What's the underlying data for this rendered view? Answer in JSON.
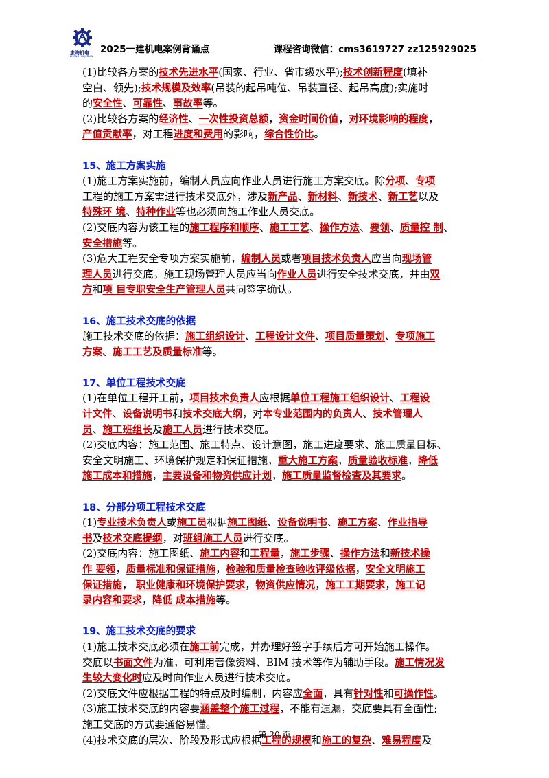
{
  "header": {
    "brand": "忠海机电",
    "brand_sub": "ZHONG HAI JI DIAN",
    "title": "2025一建机电案例背诵点",
    "contact": "课程咨询微信：cms3619727  zz125929025"
  },
  "footer": {
    "page": "第 20 页"
  },
  "lines": [
    [
      [
        "(1)比较各方案的",
        0
      ],
      [
        "技术先进水平",
        1
      ],
      [
        "(国家、行业、省市级水平);",
        0
      ],
      [
        "技术创新程度",
        1
      ],
      [
        "(填补",
        0
      ]
    ],
    [
      [
        "空白、领先);",
        0
      ],
      [
        "技术规模及效率",
        1
      ],
      [
        "(吊装的起吊吨位、吊装直径、起吊高度);实施时",
        0
      ]
    ],
    [
      [
        "的",
        0
      ],
      [
        "安全性",
        1
      ],
      [
        "、",
        0
      ],
      [
        "可靠性",
        1
      ],
      [
        "、",
        0
      ],
      [
        "事故率",
        1
      ],
      [
        "等。",
        0
      ]
    ],
    [
      [
        "(2)比较各方案的",
        0
      ],
      [
        "经济性",
        1
      ],
      [
        "、",
        0
      ],
      [
        "一次性投资总额",
        1
      ],
      [
        "，",
        0
      ],
      [
        "资金时间价值",
        1
      ],
      [
        "，",
        0
      ],
      [
        "对环境影响的程度",
        1
      ],
      [
        "，",
        0
      ]
    ],
    [
      [
        "产值贡献率",
        1
      ],
      [
        "，对工程",
        0
      ],
      [
        "进度和费用",
        1
      ],
      [
        "的影响，",
        0
      ],
      [
        "综合性价比",
        1
      ],
      [
        "。",
        0
      ]
    ],
    [],
    [
      [
        "15、施工方案实施",
        2
      ]
    ],
    [
      [
        "(1)施工方案实施前，编制人员应向作业人员进行施工方案交底。除",
        0
      ],
      [
        "分项",
        1
      ],
      [
        "、",
        0
      ],
      [
        "专项",
        1
      ]
    ],
    [
      [
        "工程的施工方案需进行技术交底外，涉及",
        0
      ],
      [
        "新产品",
        1
      ],
      [
        "、",
        0
      ],
      [
        "新材料",
        1
      ],
      [
        "、",
        0
      ],
      [
        "新技术",
        1
      ],
      [
        "、",
        0
      ],
      [
        "新工艺",
        1
      ],
      [
        "以及",
        0
      ]
    ],
    [
      [
        "特殊环 境",
        1
      ],
      [
        "、",
        0
      ],
      [
        "特种作业",
        1
      ],
      [
        "等也必须向施工作业人员交底。",
        0
      ]
    ],
    [
      [
        "(2)交底内容为该工程的",
        0
      ],
      [
        "施工程序和顺序",
        1
      ],
      [
        "、",
        0
      ],
      [
        "施工工艺",
        1
      ],
      [
        "、",
        0
      ],
      [
        "操作方法",
        1
      ],
      [
        "、",
        0
      ],
      [
        "要领",
        1
      ],
      [
        "、",
        0
      ],
      [
        "质量控 制",
        1
      ],
      [
        "、",
        0
      ]
    ],
    [
      [
        "安全措施",
        1
      ],
      [
        "等。",
        0
      ]
    ],
    [
      [
        "(3)危大工程安全专项方案实施前，",
        0
      ],
      [
        "编制人员",
        1
      ],
      [
        "或者",
        0
      ],
      [
        "项目技术负责人",
        1
      ],
      [
        "应当向",
        0
      ],
      [
        "现场管",
        1
      ]
    ],
    [
      [
        "理人员",
        1
      ],
      [
        "进行交底。施工现场管理人员应当向",
        0
      ],
      [
        "作业人员",
        1
      ],
      [
        "进行安全技术交底，并由",
        0
      ],
      [
        "双",
        1
      ]
    ],
    [
      [
        "方",
        1
      ],
      [
        "和",
        0
      ],
      [
        "项 目专职安全生产管理人员",
        1
      ],
      [
        "共同签字确认。",
        0
      ]
    ],
    [],
    [
      [
        "16、施工技术交底的依据",
        2
      ]
    ],
    [
      [
        "施工技术交底的依据：",
        0
      ],
      [
        "施工组织设计",
        1
      ],
      [
        "、",
        0
      ],
      [
        "工程设计文件",
        1
      ],
      [
        "、",
        0
      ],
      [
        "项目质量策划",
        1
      ],
      [
        "、",
        0
      ],
      [
        "专项施工",
        1
      ]
    ],
    [
      [
        "方案",
        1
      ],
      [
        "、",
        0
      ],
      [
        "施工工艺及质量标准",
        1
      ],
      [
        "等。",
        0
      ]
    ],
    [],
    [
      [
        "17、单位工程技术交底",
        2
      ]
    ],
    [
      [
        "(1)在单位工程开工前，",
        0
      ],
      [
        "项目技术负责人",
        1
      ],
      [
        "应根据",
        0
      ],
      [
        "单位工程施工组织设计",
        1
      ],
      [
        "、",
        0
      ],
      [
        "工程设",
        1
      ]
    ],
    [
      [
        "计文件",
        1
      ],
      [
        "、",
        0
      ],
      [
        "设备说明书",
        1
      ],
      [
        "和",
        0
      ],
      [
        "技术交底大纲",
        1
      ],
      [
        "，对",
        0
      ],
      [
        "本专业范围内的负责人",
        1
      ],
      [
        "、",
        0
      ],
      [
        "技术管理人",
        1
      ]
    ],
    [
      [
        "员",
        1
      ],
      [
        "、",
        0
      ],
      [
        "施工班组长",
        1
      ],
      [
        "及",
        0
      ],
      [
        "施工人员",
        1
      ],
      [
        "进行技术交底。",
        0
      ]
    ],
    [
      [
        "(2)交底内容：施工范围、施工特点、设计意图，施工进度要求、施工质量目标、",
        0
      ]
    ],
    [
      [
        "安全文明施工、环境保护规定和保证措施，",
        0
      ],
      [
        "重大施工方案",
        1
      ],
      [
        "，",
        0
      ],
      [
        "质量验收标准",
        1
      ],
      [
        "，",
        0
      ],
      [
        "降低",
        1
      ]
    ],
    [
      [
        "施工成本和措施",
        1
      ],
      [
        "，",
        0
      ],
      [
        "主要设备和物资供应计划",
        1
      ],
      [
        "，",
        0
      ],
      [
        "施工质量监督检查及其要求",
        1
      ],
      [
        "。",
        0
      ]
    ],
    [],
    [
      [
        "18、分部分项工程技术交底",
        2
      ]
    ],
    [
      [
        "(1)",
        0
      ],
      [
        "专业技术负责人",
        1
      ],
      [
        "或",
        0
      ],
      [
        "施工员",
        1
      ],
      [
        "根据",
        0
      ],
      [
        "施工图纸",
        1
      ],
      [
        "、",
        0
      ],
      [
        "设备说明书",
        1
      ],
      [
        "、",
        0
      ],
      [
        "施工方案",
        1
      ],
      [
        "、",
        0
      ],
      [
        "作业指导",
        1
      ]
    ],
    [
      [
        "书",
        1
      ],
      [
        "及",
        0
      ],
      [
        "技术交底提纲",
        1
      ],
      [
        "，对",
        0
      ],
      [
        "班组施工人员",
        1
      ],
      [
        "进行交底。",
        0
      ]
    ],
    [
      [
        "(2)交底内容：施工图纸、",
        0
      ],
      [
        "施工内容",
        1
      ],
      [
        "和",
        0
      ],
      [
        "工程量",
        1
      ],
      [
        "，",
        0
      ],
      [
        "施工步骤",
        1
      ],
      [
        "、",
        0
      ],
      [
        "操作方法",
        1
      ],
      [
        "和",
        0
      ],
      [
        "新技术操",
        1
      ]
    ],
    [
      [
        "作 要领",
        1
      ],
      [
        "，",
        0
      ],
      [
        "质量标准和保证措施",
        1
      ],
      [
        "，",
        0
      ],
      [
        "检验和质量检查验收评级依据",
        1
      ],
      [
        "，",
        0
      ],
      [
        "安全文明施工",
        1
      ]
    ],
    [
      [
        "保证措施",
        1
      ],
      [
        "，  ",
        0
      ],
      [
        "职业健康和环境保护要求",
        1
      ],
      [
        "，",
        0
      ],
      [
        "物资供应情况",
        1
      ],
      [
        "，",
        0
      ],
      [
        "施工工期要求",
        1
      ],
      [
        "，",
        0
      ],
      [
        "施工记",
        1
      ]
    ],
    [
      [
        "录内容和要求",
        1
      ],
      [
        "，",
        0
      ],
      [
        "降低 成本措施",
        1
      ],
      [
        "等。",
        0
      ]
    ],
    [],
    [
      [
        "19、施工技术交底的要求",
        2
      ]
    ],
    [
      [
        "(1)施工技术交底必须在",
        0
      ],
      [
        "施工前",
        1
      ],
      [
        "完成，并办理好签字手续后方可开始施工操作。",
        0
      ]
    ],
    [
      [
        "交底以",
        0
      ],
      [
        "书面文件",
        1
      ],
      [
        "为准，可利用音像资料、BIM 技术等作为辅助手段。",
        0
      ],
      [
        "施工情况发",
        1
      ]
    ],
    [
      [
        "生较大变化时",
        1
      ],
      [
        "应及时向作业人员进行技术交底。",
        0
      ]
    ],
    [
      [
        "(2)交底文件应根据工程的特点及时编制，内容应",
        0
      ],
      [
        "全面",
        1
      ],
      [
        "，具有",
        0
      ],
      [
        "针对性",
        1
      ],
      [
        "和",
        0
      ],
      [
        "可操作性",
        1
      ],
      [
        "。",
        0
      ]
    ],
    [
      [
        "(3)施工技术交底的内容要",
        0
      ],
      [
        "涵盖整个施工过程",
        1
      ],
      [
        "，不能有遗漏，交底要具有全面性;",
        0
      ]
    ],
    [
      [
        "施工交底的方式要通俗易懂。",
        0
      ]
    ],
    [
      [
        "(4)技术交底的层次、阶段及形式应根据",
        0
      ],
      [
        "工程的规模",
        1
      ],
      [
        "和",
        0
      ],
      [
        "施工的复杂",
        1
      ],
      [
        "、",
        0
      ],
      [
        "难易程度",
        1
      ],
      [
        "及",
        0
      ]
    ]
  ]
}
